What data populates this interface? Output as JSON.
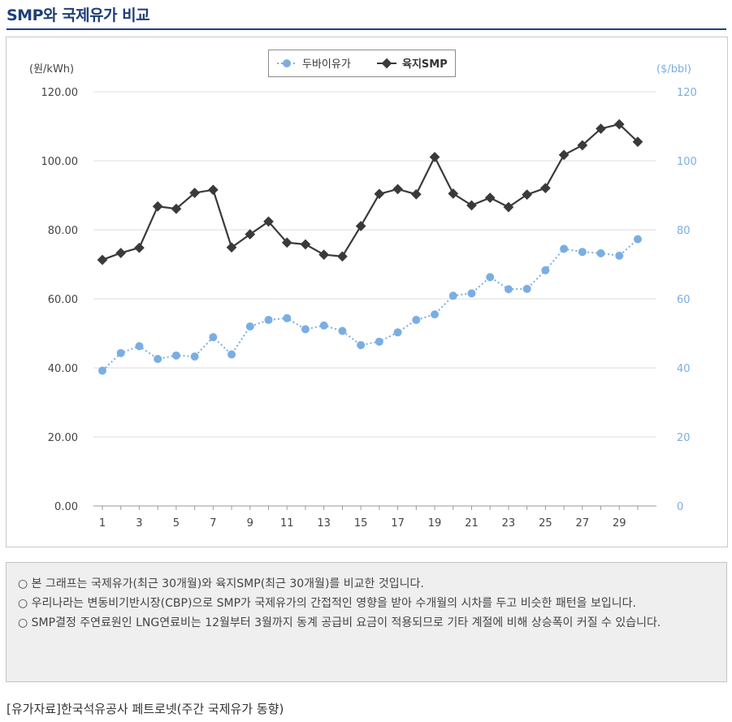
{
  "page": {
    "title": "SMP와 국제유가 비교",
    "source": "[유가자료]한국석유공사 페트로넷(주간 국제유가 동향)"
  },
  "notes": [
    "○  본 그래프는 국제유가(최근 30개월)와 육지SMP(최근 30개월)를 비교한 것입니다.",
    "○  우리나라는 변동비기반시장(CBP)으로 SMP가 국제유가의 간접적인 영향을 받아 수개월의 시차를 두고 비슷한 패턴을 보입니다.",
    "○  SMP결정 주연료원인 LNG연료비는 12월부터 3월까지 동계 공급비 요금이 적용되므로 기타 계절에 비해 상승폭이 커질 수 있습니다."
  ],
  "colors": {
    "title": "#1f3f78",
    "dubai": "#7aaee3",
    "smp": "#3a3a3a",
    "grid": "#dddddd"
  },
  "chart_data": {
    "type": "line",
    "x": [
      1,
      2,
      3,
      4,
      5,
      6,
      7,
      8,
      9,
      10,
      11,
      12,
      13,
      14,
      15,
      16,
      17,
      18,
      19,
      20,
      21,
      22,
      23,
      24,
      25,
      26,
      27,
      28,
      29,
      30
    ],
    "x_tick_labels": [
      "1",
      "3",
      "5",
      "7",
      "9",
      "11",
      "13",
      "15",
      "17",
      "19",
      "21",
      "23",
      "25",
      "27",
      "29"
    ],
    "y_left_label": "(원/kWh)",
    "y_right_label": "($/bbl)",
    "y_left_ticks": [
      "0.00",
      "20.00",
      "40.00",
      "60.00",
      "80.00",
      "100.00",
      "120.00"
    ],
    "y_right_ticks": [
      "0",
      "20",
      "40",
      "60",
      "80",
      "100",
      "120"
    ],
    "ylim_left": [
      0,
      120
    ],
    "ylim_right": [
      0,
      120
    ],
    "grid": true,
    "legend_position": "top-center",
    "series": [
      {
        "name": "두바이유가",
        "axis": "right",
        "style": "dotted-circle",
        "color": "#7aaee3",
        "values": [
          39.2,
          44.3,
          46.3,
          42.6,
          43.6,
          43.3,
          48.9,
          43.9,
          52.0,
          53.9,
          54.4,
          51.2,
          52.3,
          50.7,
          46.6,
          47.6,
          50.3,
          53.9,
          55.5,
          60.9,
          61.6,
          66.3,
          62.8,
          62.9,
          68.3,
          74.5,
          73.6,
          73.2,
          72.5,
          77.3
        ]
      },
      {
        "name": "육지SMP",
        "axis": "left",
        "style": "solid-diamond",
        "color": "#3a3a3a",
        "values": [
          71.3,
          73.3,
          74.8,
          86.8,
          86.1,
          90.7,
          91.6,
          74.9,
          78.7,
          82.4,
          76.3,
          75.8,
          72.8,
          72.3,
          81.1,
          90.4,
          91.8,
          90.3,
          101.1,
          90.5,
          87.1,
          89.3,
          86.6,
          90.2,
          92.1,
          101.7,
          104.5,
          109.3,
          110.6,
          105.5
        ]
      }
    ]
  }
}
